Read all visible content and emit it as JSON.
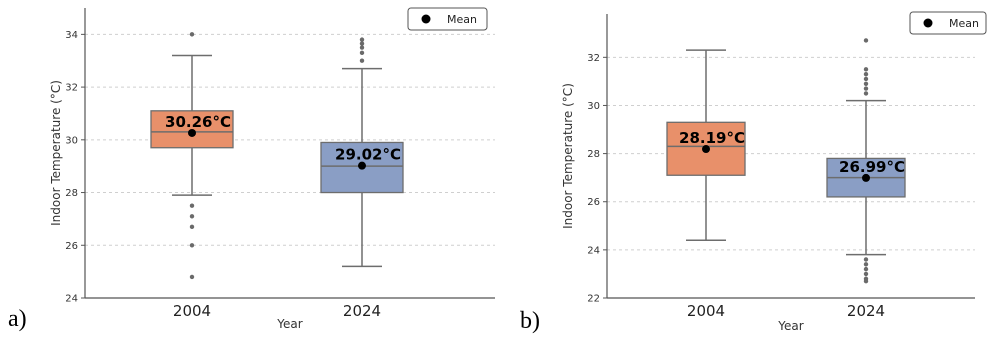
{
  "chart_data": [
    {
      "type": "box",
      "panel_label": "a)",
      "xlabel": "Year",
      "ylabel": "Indoor Temperature (°C)",
      "categories": [
        "2004",
        "2024"
      ],
      "ylim": [
        24,
        35
      ],
      "yticks": [
        24,
        26,
        28,
        30,
        32,
        34
      ],
      "grid": "horizontal dashed",
      "legend": {
        "label": "Mean",
        "position": "top-right"
      },
      "boxes": [
        {
          "category": "2004",
          "color": "#E8906A",
          "whisker_low": 27.9,
          "q1": 29.7,
          "median": 30.3,
          "q3": 31.1,
          "whisker_high": 33.2,
          "mean": 30.26,
          "mean_label": "30.26°C",
          "outliers": [
            34.0,
            27.5,
            27.1,
            26.7,
            26.0,
            24.8
          ]
        },
        {
          "category": "2024",
          "color": "#8A9EC5",
          "whisker_low": 25.2,
          "q1": 28.0,
          "median": 29.0,
          "q3": 29.9,
          "whisker_high": 32.7,
          "mean": 29.02,
          "mean_label": "29.02°C",
          "outliers": [
            33.0,
            33.3,
            33.5,
            33.65,
            33.8
          ]
        }
      ]
    },
    {
      "type": "box",
      "panel_label": "b)",
      "xlabel": "Year",
      "ylabel": "Indoor Temperature (°C)",
      "categories": [
        "2004",
        "2024"
      ],
      "ylim": [
        22,
        33.8
      ],
      "yticks": [
        22,
        24,
        26,
        28,
        30,
        32
      ],
      "grid": "horizontal dashed",
      "legend": {
        "label": "Mean",
        "position": "top-right"
      },
      "boxes": [
        {
          "category": "2004",
          "color": "#E8906A",
          "whisker_low": 24.4,
          "q1": 27.1,
          "median": 28.3,
          "q3": 29.3,
          "whisker_high": 32.3,
          "mean": 28.19,
          "mean_label": "28.19°C",
          "outliers": []
        },
        {
          "category": "2024",
          "color": "#8A9EC5",
          "whisker_low": 23.8,
          "q1": 26.2,
          "median": 27.0,
          "q3": 27.8,
          "whisker_high": 30.2,
          "mean": 26.99,
          "mean_label": "26.99°C",
          "outliers": [
            32.7,
            31.5,
            31.3,
            31.1,
            30.9,
            30.7,
            30.5,
            23.6,
            23.4,
            23.2,
            23.0,
            22.8,
            22.7
          ]
        }
      ]
    }
  ]
}
